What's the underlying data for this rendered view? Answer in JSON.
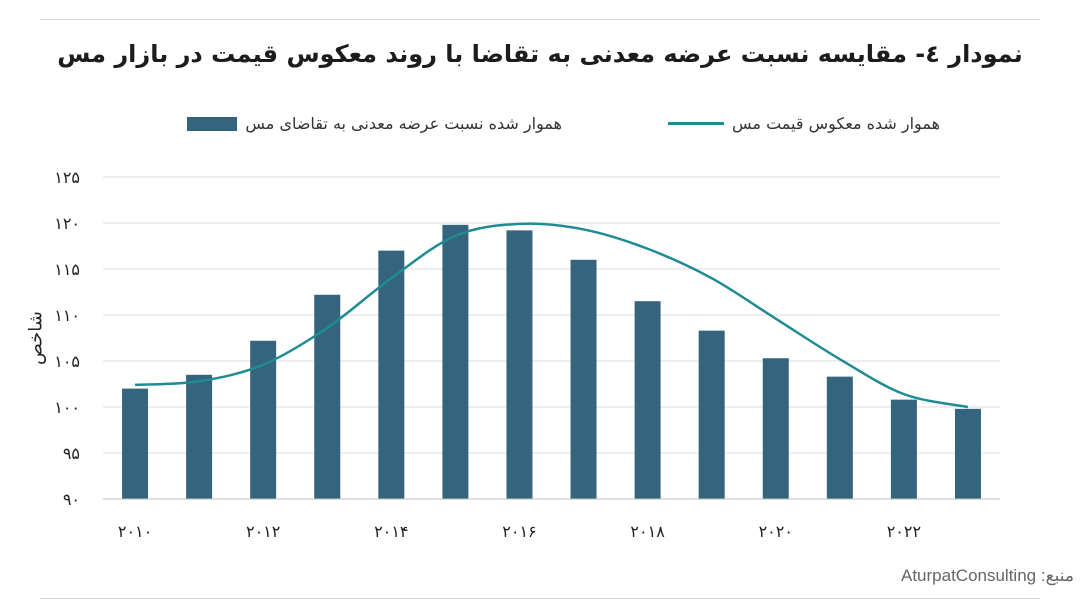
{
  "title": "نمودار ٤- مقایسه نسبت عرضه معدنی به تقاضا با روند معکوس قیمت در بازار مس",
  "source": "AturpatConsulting :منبع",
  "colors": {
    "bar": "#35657c",
    "line": "#1f8b93",
    "grid": "#dcdcdc"
  },
  "chart_data": {
    "type": "bar",
    "ylabel": "شاخص",
    "ylim": [
      90,
      125
    ],
    "yticks": [
      90,
      95,
      100,
      105,
      110,
      115,
      120,
      125
    ],
    "ytick_labels": [
      "۹۰",
      "۹۵",
      "۱۰۰",
      "۱۰۵",
      "۱۱۰",
      "۱۱۵",
      "۱۲۰",
      "۱۲۵"
    ],
    "categories": [
      "2010",
      "2011",
      "2012",
      "2013",
      "2014",
      "2015",
      "2016",
      "2017",
      "2018",
      "2019",
      "2020",
      "2021",
      "2022",
      "2023"
    ],
    "xtick_labels": [
      "۲۰۱۰",
      "",
      "۲۰۱۲",
      "",
      "۲۰۱۴",
      "",
      "۲۰۱۶",
      "",
      "۲۰۱۸",
      "",
      "۲۰۲۰",
      "",
      "۲۰۲۲",
      ""
    ],
    "legend_position": "top",
    "grid": true,
    "series": [
      {
        "name": "هموار شده نسبت عرضه معدنی به تقاضای مس",
        "type": "bar",
        "values": [
          102.0,
          103.5,
          107.2,
          112.2,
          117.0,
          119.8,
          119.2,
          116.0,
          111.5,
          108.3,
          105.3,
          103.3,
          100.8,
          99.8
        ]
      },
      {
        "name": "هموار شده معکوس قیمت مس",
        "type": "line",
        "values": [
          102.4,
          102.8,
          104.6,
          108.6,
          114.0,
          118.6,
          119.9,
          119.3,
          117.2,
          114.0,
          109.6,
          105.2,
          101.4,
          100.0
        ]
      }
    ]
  }
}
